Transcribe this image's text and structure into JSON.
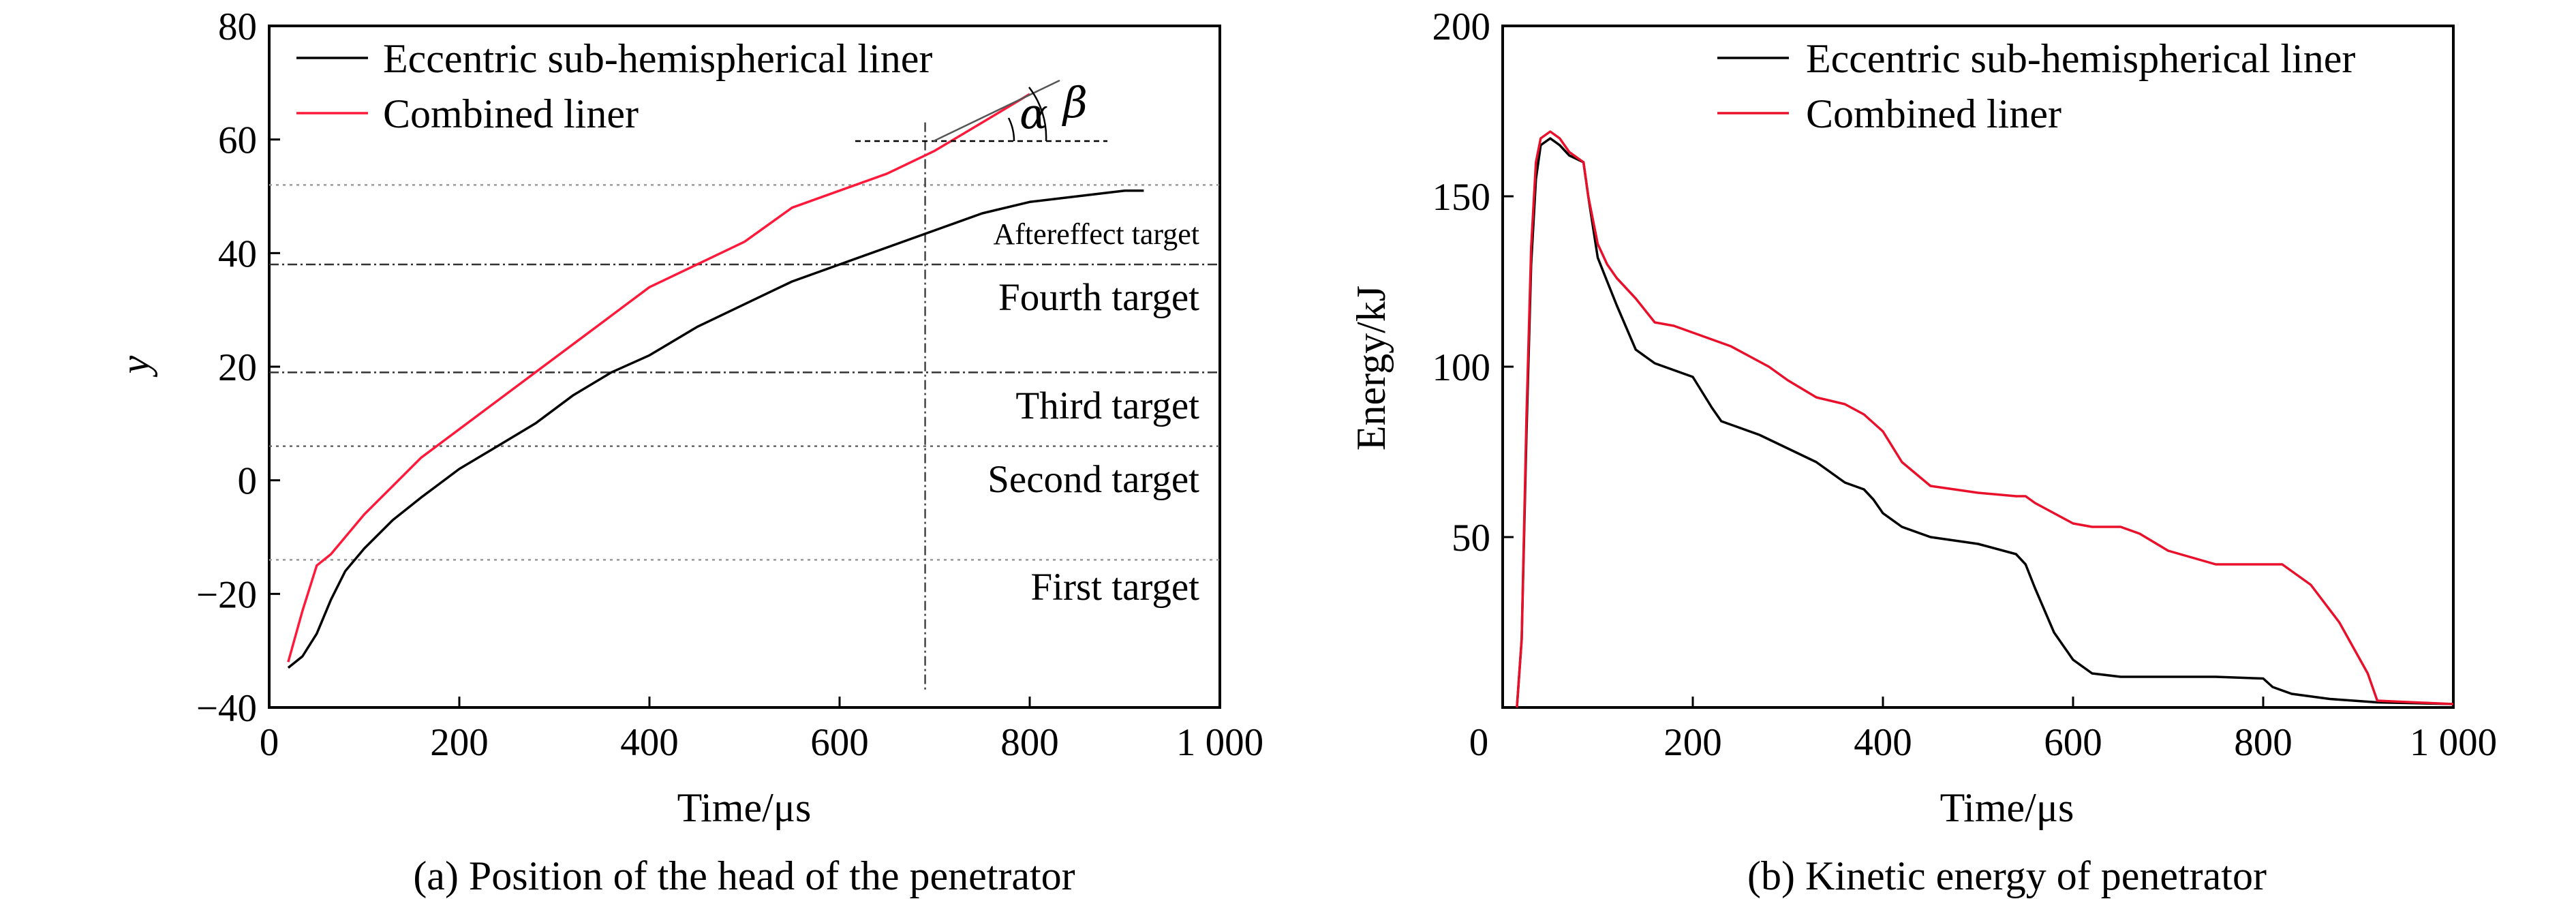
{
  "chart_data": [
    {
      "type": "line",
      "xlabel": "Time/μs",
      "ylabel": "y",
      "caption": "(a) Position of the head of the penetrator",
      "xlim": [
        0,
        1000
      ],
      "ylim": [
        -40,
        80
      ],
      "xticks": [
        0,
        200,
        400,
        600,
        800,
        1000
      ],
      "xtick_labels": [
        "0",
        "200",
        "400",
        "600",
        "800",
        "1 000"
      ],
      "yticks": [
        -40,
        -20,
        0,
        20,
        40,
        60,
        80
      ],
      "ytick_labels": [
        "−40",
        "−20",
        "0",
        "20",
        "40",
        "60",
        "80"
      ],
      "legend_position": "top-left",
      "series": [
        {
          "name": "Eccentric sub-hemispherical liner",
          "color": "#000000",
          "x": [
            20,
            35,
            50,
            65,
            80,
            100,
            130,
            160,
            200,
            240,
            280,
            320,
            360,
            400,
            450,
            500,
            550,
            600,
            650,
            700,
            750,
            800,
            850,
            900,
            920
          ],
          "y": [
            -33,
            -31,
            -27,
            -21,
            -16,
            -12,
            -7,
            -3,
            2,
            6,
            10,
            15,
            19,
            22,
            27,
            31,
            35,
            38,
            41,
            44,
            47,
            49,
            50,
            51,
            51
          ]
        },
        {
          "name": "Combined liner",
          "color": "#ff1a3c",
          "x": [
            20,
            35,
            50,
            65,
            80,
            100,
            130,
            160,
            200,
            240,
            280,
            320,
            360,
            400,
            450,
            500,
            550,
            600,
            650,
            700,
            750,
            800
          ],
          "y": [
            -32,
            -23,
            -15,
            -13,
            -10,
            -6,
            -1,
            4,
            9,
            14,
            19,
            24,
            29,
            34,
            38,
            42,
            48,
            51,
            54,
            58,
            63,
            68
          ]
        }
      ],
      "reference_lines_y": [
        52,
        38,
        19,
        6,
        -14
      ],
      "reference_line_x": 690,
      "region_labels": [
        "Aftereffect target",
        "Fourth target",
        "Third target",
        "Second target",
        "First target"
      ],
      "angle_labels": [
        "α",
        "β"
      ]
    },
    {
      "type": "line",
      "xlabel": "Time/μs",
      "ylabel": "Energy/kJ",
      "caption": "(b) Kinetic energy of penetrator",
      "xlim": [
        0,
        1000
      ],
      "ylim": [
        0,
        200
      ],
      "xticks": [
        0,
        200,
        400,
        600,
        800,
        1000
      ],
      "xtick_labels": [
        "0",
        "200",
        "400",
        "600",
        "800",
        "1 000"
      ],
      "yticks": [
        50,
        100,
        150,
        200
      ],
      "ytick_labels": [
        "50",
        "100",
        "150",
        "200"
      ],
      "legend_position": "top-right",
      "series": [
        {
          "name": "Eccentric sub-hemispherical liner",
          "color": "#000000",
          "x": [
            15,
            20,
            25,
            30,
            35,
            40,
            50,
            60,
            70,
            85,
            90,
            100,
            110,
            120,
            140,
            160,
            180,
            200,
            220,
            230,
            250,
            270,
            300,
            330,
            360,
            380,
            390,
            400,
            420,
            450,
            500,
            540,
            550,
            560,
            580,
            600,
            620,
            650,
            700,
            750,
            800,
            810,
            830,
            870,
            920,
            1000
          ],
          "y": [
            0,
            20,
            80,
            130,
            155,
            165,
            167,
            165,
            162,
            160,
            150,
            132,
            125,
            118,
            105,
            101,
            99,
            97,
            88,
            84,
            82,
            80,
            76,
            72,
            66,
            64,
            61,
            57,
            53,
            50,
            48,
            45,
            42,
            35,
            22,
            14,
            10,
            9,
            9,
            9,
            8.5,
            6,
            4,
            2.5,
            1.5,
            1
          ]
        },
        {
          "name": "Combined liner",
          "color": "#e8102a",
          "x": [
            15,
            20,
            25,
            30,
            35,
            40,
            50,
            60,
            70,
            85,
            90,
            100,
            110,
            120,
            140,
            160,
            180,
            200,
            220,
            240,
            260,
            280,
            300,
            330,
            360,
            380,
            400,
            420,
            450,
            500,
            540,
            550,
            560,
            580,
            600,
            620,
            650,
            670,
            700,
            750,
            800,
            820,
            850,
            880,
            910,
            920,
            1000
          ],
          "y": [
            0,
            20,
            85,
            135,
            160,
            167,
            169,
            167,
            163,
            160,
            150,
            136,
            130,
            126,
            120,
            113,
            112,
            110,
            108,
            106,
            103,
            100,
            96,
            91,
            89,
            86,
            81,
            72,
            65,
            63,
            62,
            62,
            60,
            57,
            54,
            53,
            53,
            51,
            46,
            42,
            42,
            42,
            36,
            25,
            10,
            2,
            1
          ]
        }
      ]
    }
  ]
}
